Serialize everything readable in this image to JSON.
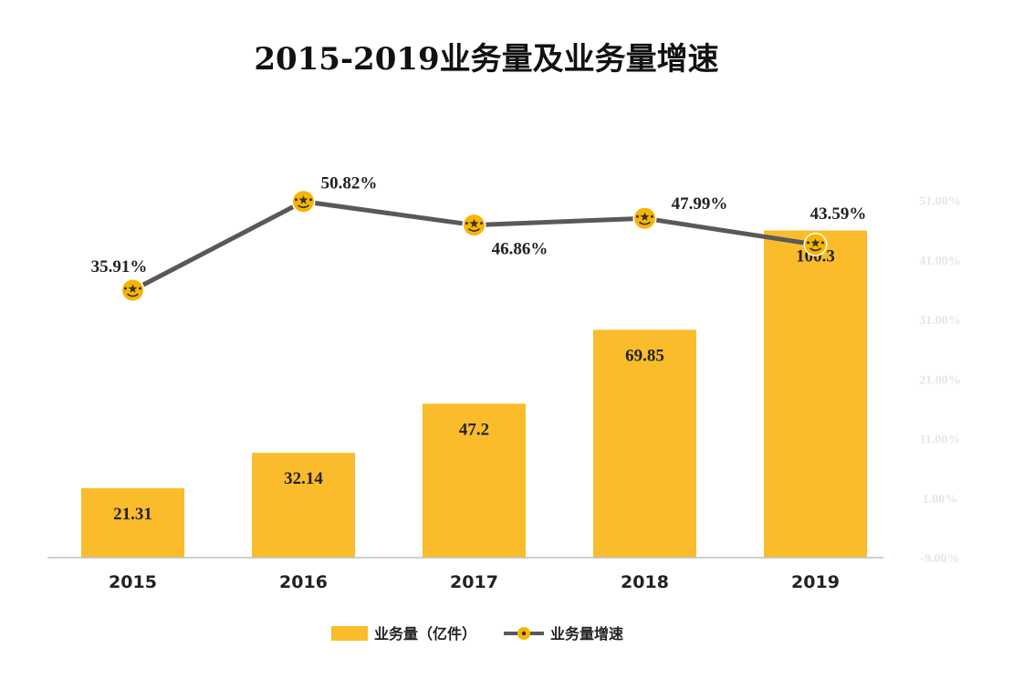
{
  "chart_data": {
    "type": "bar+line",
    "title": "2015-2019业务量及业务量增速",
    "categories": [
      "2015",
      "2016",
      "2017",
      "2018",
      "2019"
    ],
    "series": [
      {
        "name": "业务量（亿件）",
        "kind": "bar",
        "axis": "left",
        "values": [
          21.31,
          32.14,
          47.2,
          69.85,
          100.3
        ],
        "labels": [
          "21.31",
          "32.14",
          "47.2",
          "69.85",
          "100.3"
        ]
      },
      {
        "name": "业务量增速",
        "kind": "line",
        "axis": "right",
        "values": [
          35.91,
          50.82,
          46.86,
          47.99,
          43.59
        ],
        "labels": [
          "35.91%",
          "50.82%",
          "46.86%",
          "47.99%",
          "43.59%"
        ]
      }
    ],
    "y_left_range": [
      0,
      115
    ],
    "y_right_range": [
      -9,
      54
    ],
    "y_right_ticks": [
      "51.00%",
      "41.00%",
      "31.00%",
      "21.00%",
      "11.00%",
      "1.00%",
      "-9.00%"
    ],
    "legend_position": "bottom",
    "colors": {
      "bar": "#FBBC2C",
      "line": "#595959",
      "marker": "#F7B500",
      "right_axis_text": "#E6E6E6"
    }
  }
}
